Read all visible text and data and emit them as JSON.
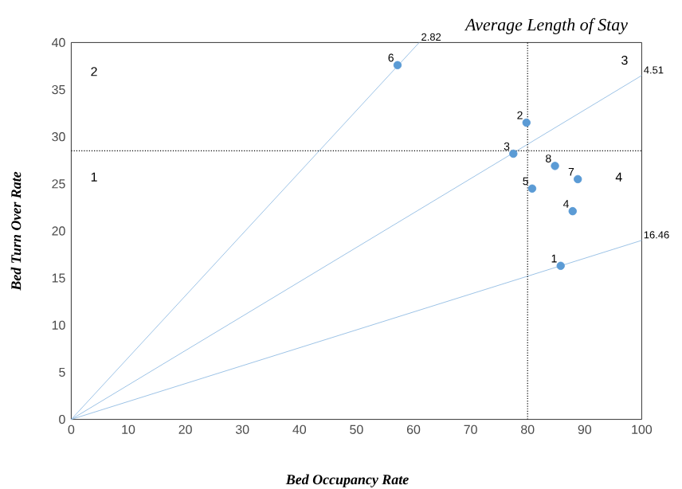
{
  "chart_data": {
    "type": "scatter",
    "title": "Average Length of Stay",
    "xlabel": "Bed Occupancy Rate",
    "ylabel": "Bed Turn Over Rate",
    "xlim": [
      0,
      100
    ],
    "ylim": [
      0,
      40
    ],
    "xticks": [
      0,
      10,
      20,
      30,
      40,
      50,
      60,
      70,
      80,
      90,
      100
    ],
    "yticks": [
      0,
      5,
      10,
      15,
      20,
      25,
      30,
      35,
      40
    ],
    "grid": false,
    "series": [
      {
        "marker": "circle",
        "color": "#5b9bd5",
        "x": [
          85.8,
          79.8,
          77.5,
          87.9,
          80.8,
          57.2,
          88.8,
          84.8
        ],
        "values": [
          16.3,
          31.5,
          28.2,
          22.1,
          24.5,
          37.6,
          25.5,
          26.9
        ]
      },
      {
        "type": "line",
        "marker": "none",
        "name": "2.82",
        "color": "#9dc3e6",
        "x": [
          0,
          61
        ],
        "values": [
          0,
          40
        ]
      },
      {
        "type": "line",
        "marker": "none",
        "name": "4.51",
        "color": "#9dc3e6",
        "x": [
          0,
          100
        ],
        "values": [
          0,
          36.5
        ]
      },
      {
        "type": "line",
        "marker": "none",
        "name": "16.46",
        "color": "#9dc3e6",
        "x": [
          0,
          100
        ],
        "values": [
          0,
          19.0
        ]
      }
    ],
    "ref_lines": [
      {
        "axis": "x",
        "value": 80,
        "color": "#000000",
        "line_style": "dotted"
      },
      {
        "axis": "y",
        "value": 28.5,
        "color": "#000000",
        "line_style": "dotted"
      }
    ],
    "annotations": [
      {
        "text": "1",
        "x": 85.8,
        "y": 16.3
      },
      {
        "text": "2",
        "x": 79.8,
        "y": 31.5
      },
      {
        "text": "3",
        "x": 77.5,
        "y": 28.2
      },
      {
        "text": "4",
        "x": 87.9,
        "y": 22.1
      },
      {
        "text": "5",
        "x": 80.8,
        "y": 24.5
      },
      {
        "text": "6",
        "x": 57.2,
        "y": 37.6
      },
      {
        "text": "7",
        "x": 88.8,
        "y": 25.5
      },
      {
        "text": "8",
        "x": 84.8,
        "y": 26.9
      },
      "1",
      "2",
      "3",
      "4"
    ]
  }
}
